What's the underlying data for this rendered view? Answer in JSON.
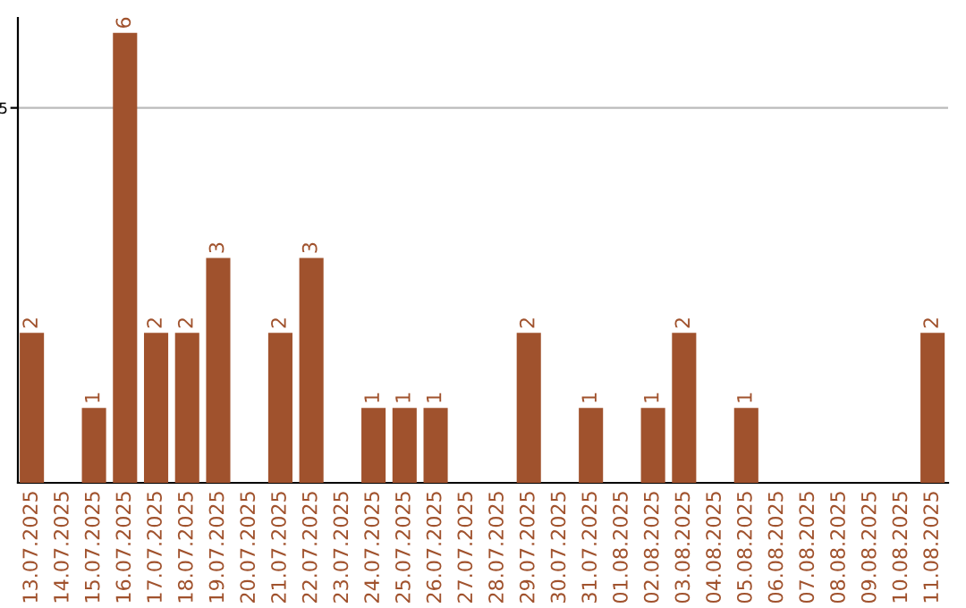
{
  "chart_data": {
    "type": "bar",
    "categories": [
      "13.07.2025",
      "14.07.2025",
      "15.07.2025",
      "16.07.2025",
      "17.07.2025",
      "18.07.2025",
      "19.07.2025",
      "20.07.2025",
      "21.07.2025",
      "22.07.2025",
      "23.07.2025",
      "24.07.2025",
      "25.07.2025",
      "26.07.2025",
      "27.07.2025",
      "28.07.2025",
      "29.07.2025",
      "30.07.2025",
      "31.07.2025",
      "01.08.2025",
      "02.08.2025",
      "03.08.2025",
      "04.08.2025",
      "05.08.2025",
      "06.08.2025",
      "07.08.2025",
      "08.08.2025",
      "09.08.2025",
      "10.08.2025",
      "11.08.2025"
    ],
    "values": [
      2,
      0,
      1,
      6,
      2,
      2,
      3,
      0,
      2,
      3,
      0,
      1,
      1,
      1,
      0,
      0,
      2,
      0,
      1,
      0,
      1,
      2,
      0,
      1,
      0,
      0,
      0,
      0,
      0,
      2
    ],
    "value_labels": [
      "2",
      null,
      "1",
      "6",
      "2",
      "2",
      "3",
      null,
      "2",
      "3",
      null,
      "1",
      "1",
      "1",
      null,
      null,
      "2",
      null,
      "1",
      null,
      "1",
      "2",
      null,
      "1",
      null,
      null,
      null,
      null,
      null,
      "2"
    ],
    "color": "#a0522d",
    "ylim": [
      0,
      6.2
    ],
    "yticks": [
      5
    ],
    "grid": "y"
  }
}
